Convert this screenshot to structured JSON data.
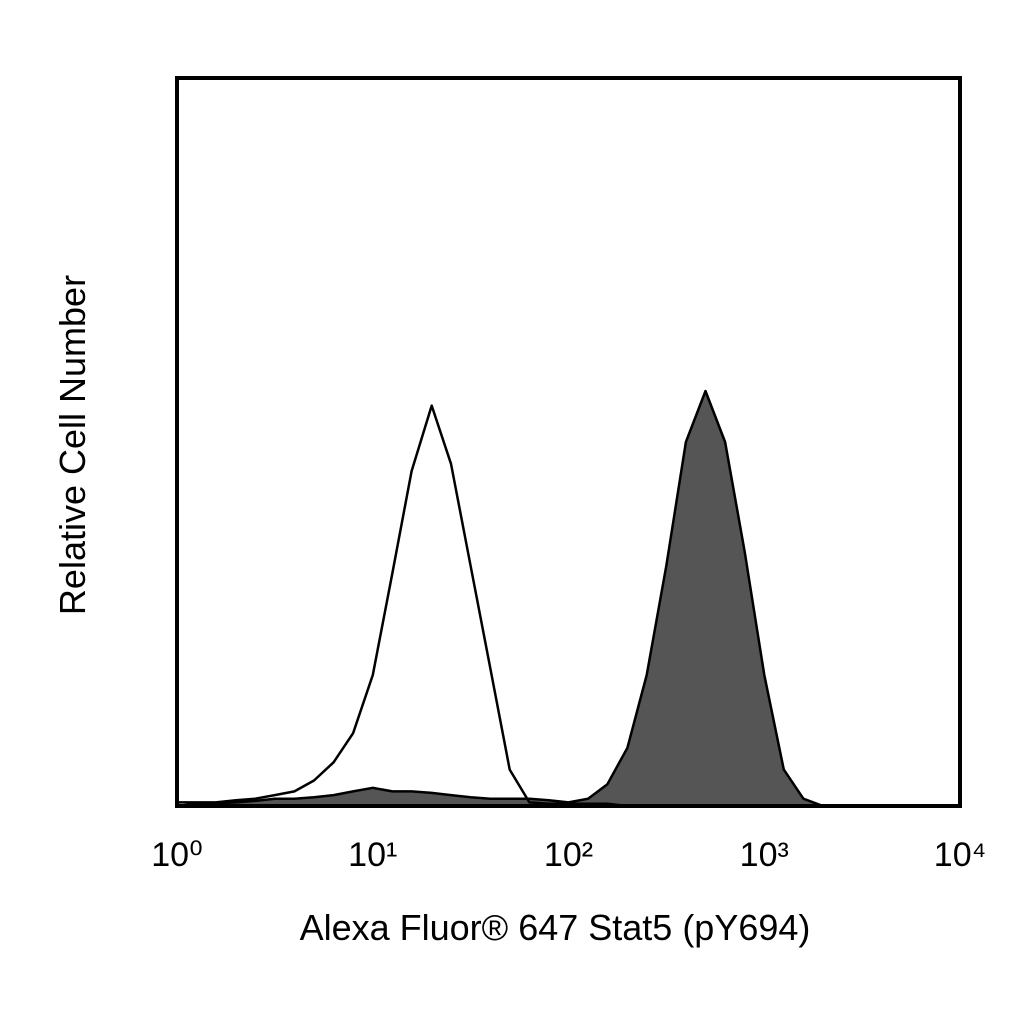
{
  "chart_data": {
    "type": "histogram-overlay",
    "xlabel": "Alexa Fluor® 647 Stat5 (pY694)",
    "ylabel": "Relative Cell Number",
    "xscale": "log",
    "xlim": [
      1,
      10000
    ],
    "xticks": [
      {
        "value": 1,
        "label": "10⁰"
      },
      {
        "value": 10,
        "label": "10¹"
      },
      {
        "value": 100,
        "label": "10²"
      },
      {
        "value": 1000,
        "label": "10³"
      },
      {
        "value": 10000,
        "label": "10⁴"
      }
    ],
    "ylim": [
      0,
      100
    ],
    "x": [
      1,
      1.26,
      1.58,
      2,
      2.51,
      3.16,
      3.98,
      5.01,
      6.31,
      7.94,
      10,
      12.6,
      15.8,
      20,
      25.1,
      31.6,
      39.8,
      50.1,
      63.1,
      79.4,
      100,
      126,
      158,
      200,
      251,
      316,
      398,
      501,
      631,
      794,
      1000,
      1259,
      1585,
      1995,
      2512,
      3162,
      3981,
      5012,
      6310,
      7943,
      10000
    ],
    "series": [
      {
        "color": "#555555",
        "filled": true,
        "values": [
          0,
          0.3,
          0.4,
          0.5,
          0.7,
          1,
          1,
          1.2,
          1.5,
          2,
          2.5,
          2,
          2,
          1.8,
          1.5,
          1.2,
          1,
          1,
          1,
          0.8,
          0.5,
          1,
          3,
          8,
          18,
          33,
          50,
          57,
          50,
          35,
          18,
          5,
          1,
          0,
          0,
          0,
          0,
          0,
          0,
          0,
          0
        ]
      },
      {
        "color": "#000000",
        "filled": false,
        "values": [
          0.5,
          0.5,
          0.5,
          0.8,
          1,
          1.5,
          2,
          3.5,
          6,
          10,
          18,
          32,
          46,
          55,
          47,
          33,
          19,
          5,
          0.5,
          0.3,
          0.3,
          0.3,
          0.3,
          0,
          0,
          0,
          0,
          0,
          0,
          0,
          0,
          0,
          0,
          0,
          0,
          0,
          0,
          0,
          0,
          0,
          0
        ]
      }
    ]
  }
}
